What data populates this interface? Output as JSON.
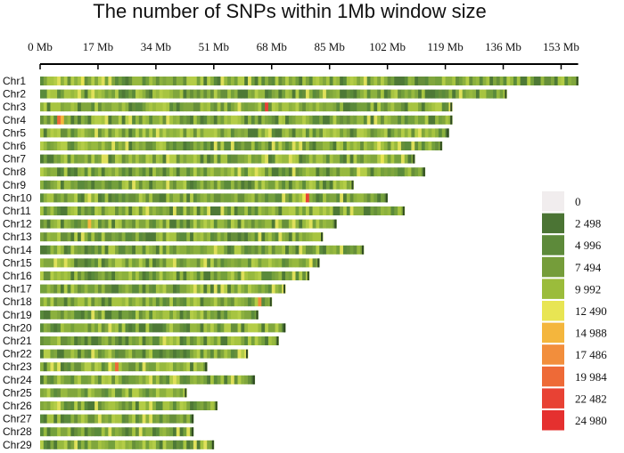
{
  "chart_data": {
    "type": "heatmap",
    "title": "The number of SNPs within 1Mb window size",
    "x_ticks": [
      {
        "value": 0,
        "label": "0 Mb"
      },
      {
        "value": 17,
        "label": "17 Mb"
      },
      {
        "value": 34,
        "label": "34 Mb"
      },
      {
        "value": 51,
        "label": "51 Mb"
      },
      {
        "value": 68,
        "label": "68 Mb"
      },
      {
        "value": 85,
        "label": "85 Mb"
      },
      {
        "value": 102,
        "label": "102 Mb"
      },
      {
        "value": 119,
        "label": "119 Mb"
      },
      {
        "value": 136,
        "label": "136 Mb"
      },
      {
        "value": 153,
        "label": "153 Mb"
      }
    ],
    "x_unit": "Mb",
    "xlim": [
      0,
      158
    ],
    "chromosomes": [
      {
        "name": "Chr1",
        "length_mb": 158,
        "hotspots": [
          {
            "pos": 12,
            "level": 12490
          }
        ]
      },
      {
        "name": "Chr2",
        "length_mb": 137,
        "hotspots": []
      },
      {
        "name": "Chr3",
        "length_mb": 121,
        "hotspots": [
          {
            "pos": 66,
            "level": 22482
          }
        ]
      },
      {
        "name": "Chr4",
        "length_mb": 121,
        "hotspots": [
          {
            "pos": 5,
            "level": 19984
          },
          {
            "pos": 6,
            "level": 14988
          }
        ]
      },
      {
        "name": "Chr5",
        "length_mb": 120,
        "hotspots": []
      },
      {
        "name": "Chr6",
        "length_mb": 118,
        "hotspots": []
      },
      {
        "name": "Chr7",
        "length_mb": 110,
        "hotspots": [
          {
            "pos": 100,
            "level": 12490
          }
        ]
      },
      {
        "name": "Chr8",
        "length_mb": 113,
        "hotspots": []
      },
      {
        "name": "Chr9",
        "length_mb": 92,
        "hotspots": []
      },
      {
        "name": "Chr10",
        "length_mb": 102,
        "hotspots": [
          {
            "pos": 77,
            "level": 12490
          },
          {
            "pos": 78,
            "level": 22482
          }
        ]
      },
      {
        "name": "Chr11",
        "length_mb": 107,
        "hotspots": []
      },
      {
        "name": "Chr12",
        "length_mb": 87,
        "hotspots": [
          {
            "pos": 14,
            "level": 14988
          }
        ]
      },
      {
        "name": "Chr13",
        "length_mb": 83,
        "hotspots": []
      },
      {
        "name": "Chr14",
        "length_mb": 95,
        "hotspots": []
      },
      {
        "name": "Chr15",
        "length_mb": 82,
        "hotspots": [
          {
            "pos": 79,
            "level": 12490
          }
        ]
      },
      {
        "name": "Chr16",
        "length_mb": 79,
        "hotspots": []
      },
      {
        "name": "Chr17",
        "length_mb": 72,
        "hotspots": []
      },
      {
        "name": "Chr18",
        "length_mb": 68,
        "hotspots": [
          {
            "pos": 64,
            "level": 17486
          }
        ]
      },
      {
        "name": "Chr19",
        "length_mb": 64,
        "hotspots": []
      },
      {
        "name": "Chr20",
        "length_mb": 72,
        "hotspots": []
      },
      {
        "name": "Chr21",
        "length_mb": 70,
        "hotspots": []
      },
      {
        "name": "Chr22",
        "length_mb": 61,
        "hotspots": []
      },
      {
        "name": "Chr23",
        "length_mb": 49,
        "hotspots": [
          {
            "pos": 20,
            "level": 12490
          },
          {
            "pos": 22,
            "level": 19984
          }
        ]
      },
      {
        "name": "Chr24",
        "length_mb": 63,
        "hotspots": []
      },
      {
        "name": "Chr25",
        "length_mb": 43,
        "hotspots": []
      },
      {
        "name": "Chr26",
        "length_mb": 52,
        "hotspots": []
      },
      {
        "name": "Chr27",
        "length_mb": 45,
        "hotspots": []
      },
      {
        "name": "Chr28",
        "length_mb": 45,
        "hotspots": []
      },
      {
        "name": "Chr29",
        "length_mb": 51,
        "hotspots": []
      }
    ],
    "legend": [
      {
        "label": "0",
        "color": "#f1edee"
      },
      {
        "label": "2 498",
        "color": "#4b7434"
      },
      {
        "label": "4 996",
        "color": "#5d8a3a"
      },
      {
        "label": "7 494",
        "color": "#759d3a"
      },
      {
        "label": "9 992",
        "color": "#9bbc3b"
      },
      {
        "label": "12 490",
        "color": "#e8e553"
      },
      {
        "label": "14 988",
        "color": "#f4b63d"
      },
      {
        "label": "17 486",
        "color": "#f28e3c"
      },
      {
        "label": "19 984",
        "color": "#ee6a37"
      },
      {
        "label": "22 482",
        "color": "#e84234"
      },
      {
        "label": "24 980",
        "color": "#e5302f"
      }
    ],
    "legend_position": "right"
  }
}
